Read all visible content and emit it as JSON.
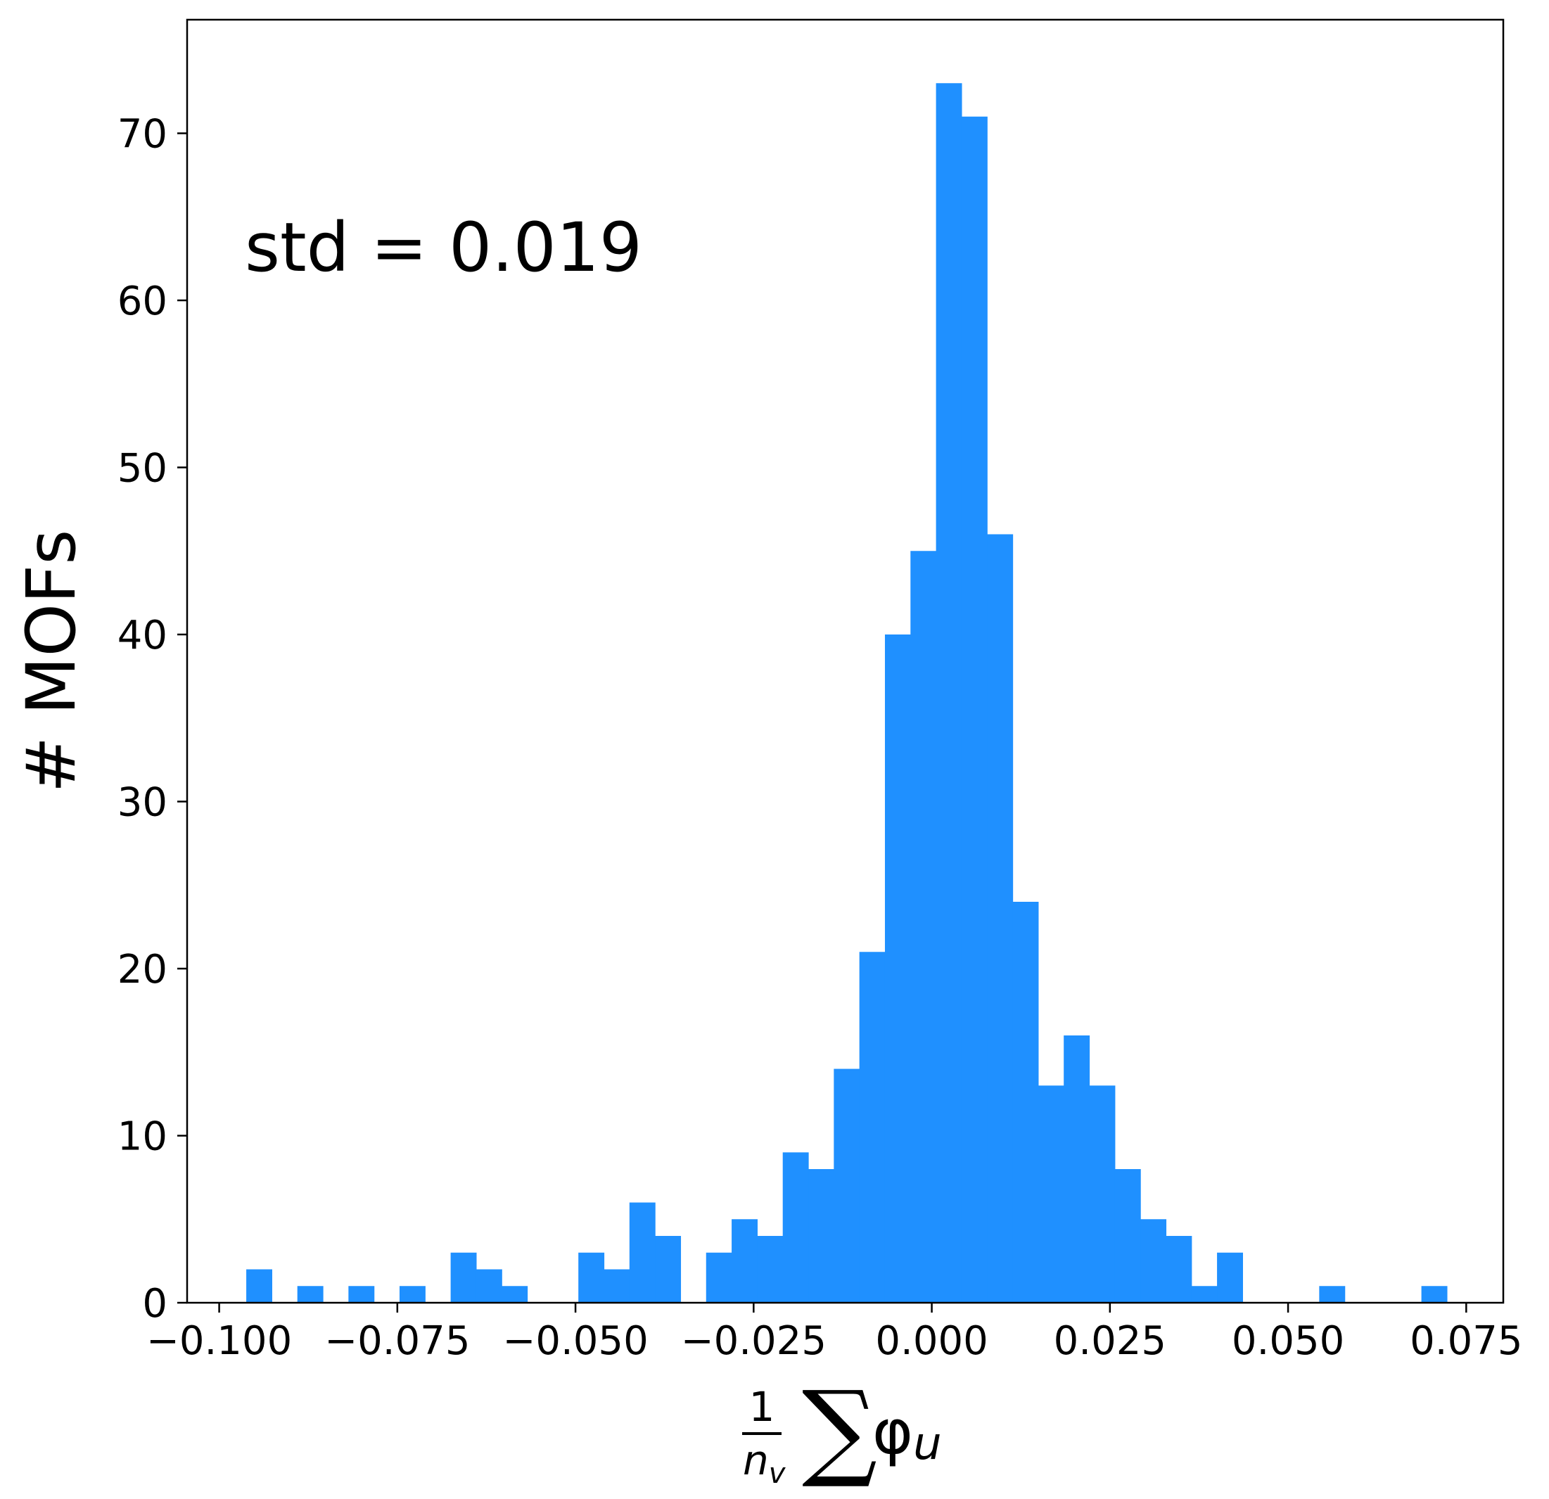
{
  "chart_data": {
    "type": "bar",
    "subtype": "histogram",
    "bar_color": "#1f90ff",
    "bin_width": 0.003585,
    "bin_start": -0.0962,
    "values": [
      2,
      0,
      1,
      0,
      1,
      0,
      1,
      0,
      3,
      2,
      1,
      0,
      0,
      3,
      2,
      6,
      4,
      0,
      3,
      5,
      4,
      9,
      8,
      14,
      21,
      40,
      45,
      73,
      71,
      46,
      24,
      13,
      16,
      13,
      8,
      5,
      4,
      1,
      3,
      0,
      0,
      0,
      1,
      0,
      0,
      0,
      1
    ],
    "xlim": [
      -0.1045,
      0.0802
    ],
    "ylim": [
      0,
      76.8
    ],
    "xticks": [
      -0.1,
      -0.075,
      -0.05,
      -0.025,
      0.0,
      0.025,
      0.05,
      0.075
    ],
    "xtick_labels": [
      "−0.100",
      "−0.075",
      "−0.050",
      "−0.025",
      "0.000",
      "0.025",
      "0.050",
      "0.075"
    ],
    "yticks": [
      0,
      10,
      20,
      30,
      40,
      50,
      60,
      70
    ],
    "ytick_labels": [
      "0",
      "10",
      "20",
      "30",
      "40",
      "50",
      "60",
      "70"
    ],
    "ylabel": "# MOFs",
    "xlabel": {
      "numerator": "1",
      "denominator": "n",
      "denominator_sub": "v",
      "operator": "∑",
      "symbol": "φ",
      "symbol_sub": "u"
    },
    "annotation": "std = 0.019",
    "grid": false,
    "legend": "none"
  }
}
